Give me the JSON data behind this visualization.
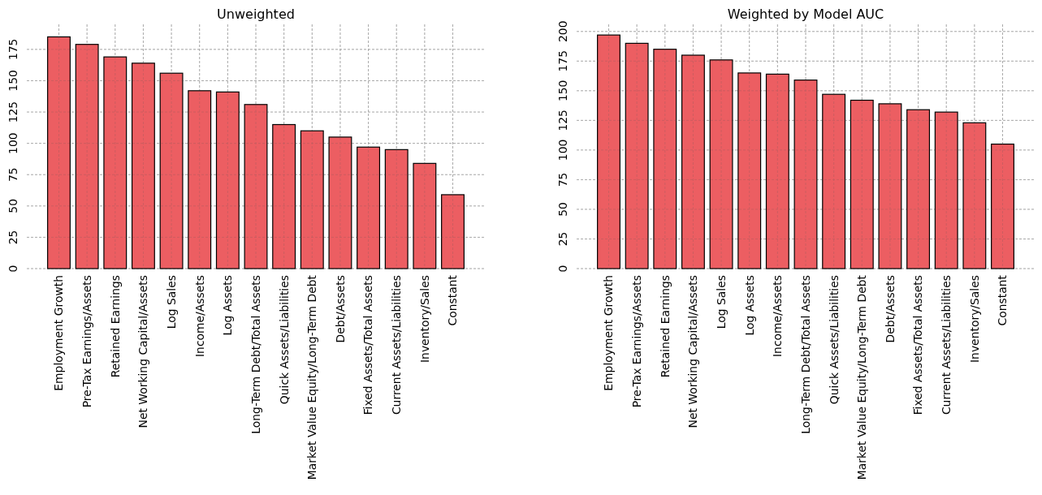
{
  "chart_data": [
    {
      "type": "bar",
      "title": "Unweighted",
      "categories": [
        "Employment Growth",
        "Pre-Tax Earnings/Assets",
        "Retained Earnings",
        "Net Working Capital/Assets",
        "Log Sales",
        "Income/Assets",
        "Log Assets",
        "Long-Term Debt/Total Assets",
        "Quick Assets/Liabilities",
        "Market Value Equity/Long-Term Debt",
        "Debt/Assets",
        "Fixed Assets/Total Assets",
        "Current Assets/Liabilities",
        "Inventory/Sales",
        "Constant"
      ],
      "values": [
        185,
        179,
        169,
        164,
        156,
        142,
        141,
        131,
        115,
        110,
        105,
        97,
        95,
        84,
        59
      ],
      "color": "#ec5e62",
      "ylim": [
        0,
        195
      ],
      "yticks": [
        0,
        25,
        50,
        75,
        100,
        125,
        150,
        175
      ],
      "grid": true
    },
    {
      "type": "bar",
      "title": "Weighted by Model AUC",
      "categories": [
        "Employment Growth",
        "Pre-Tax Earnings/Assets",
        "Retained Earnings",
        "Net Working Capital/Assets",
        "Log Sales",
        "Log Assets",
        "Income/Assets",
        "Long-Term Debt/Total Assets",
        "Quick Assets/Liabilities",
        "Market Value Equity/Long-Term Debt",
        "Debt/Assets",
        "Fixed Assets/Total Assets",
        "Current Assets/Liabilities",
        "Inventory/Sales",
        "Constant"
      ],
      "values": [
        197,
        190,
        185,
        180,
        176,
        165,
        164,
        159,
        147,
        142,
        139,
        134,
        132,
        123,
        105
      ],
      "color": "#ec5e62",
      "ylim": [
        0,
        206
      ],
      "yticks": [
        0,
        25,
        50,
        75,
        100,
        125,
        150,
        175,
        200
      ],
      "grid": true
    }
  ]
}
